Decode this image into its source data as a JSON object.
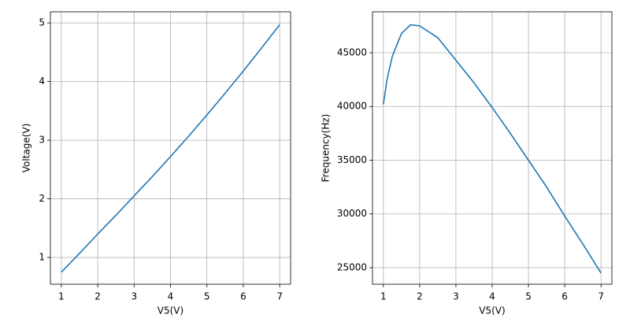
{
  "chart_data": [
    {
      "type": "line",
      "x_label": "V5(V)",
      "y_label": "Voltage(V)",
      "x": [
        1,
        1.5,
        2,
        2.5,
        3,
        3.5,
        4,
        4.5,
        5,
        5.5,
        6,
        6.5,
        7
      ],
      "series": [
        {
          "color": "#1f77b4",
          "values": [
            0.75,
            1.07,
            1.4,
            1.72,
            2.05,
            2.38,
            2.72,
            3.07,
            3.43,
            3.8,
            4.18,
            4.57,
            4.97
          ]
        }
      ],
      "xlim": [
        0.7,
        7.3
      ],
      "ylim": [
        0.544,
        5.19
      ],
      "xticks": [
        1,
        2,
        3,
        4,
        5,
        6,
        7
      ],
      "yticks": [
        1,
        2,
        3,
        4,
        5
      ],
      "grid": true
    },
    {
      "type": "line",
      "x_label": "V5(V)",
      "y_label": "Frequency(Hz)",
      "x": [
        1,
        1.1,
        1.25,
        1.5,
        1.75,
        2,
        2.5,
        3,
        3.5,
        4,
        4.5,
        5,
        5.5,
        6,
        6.5,
        7
      ],
      "series": [
        {
          "color": "#1f77b4",
          "values": [
            40200,
            42500,
            44700,
            46800,
            47600,
            47500,
            46400,
            44300,
            42200,
            39900,
            37500,
            35000,
            32500,
            29800,
            27200,
            24500
          ]
        }
      ],
      "xlim": [
        0.7,
        7.3
      ],
      "ylim": [
        23460,
        48810
      ],
      "xticks": [
        1,
        2,
        3,
        4,
        5,
        6,
        7
      ],
      "yticks": [
        25000,
        30000,
        35000,
        40000,
        45000
      ],
      "grid": true
    }
  ]
}
